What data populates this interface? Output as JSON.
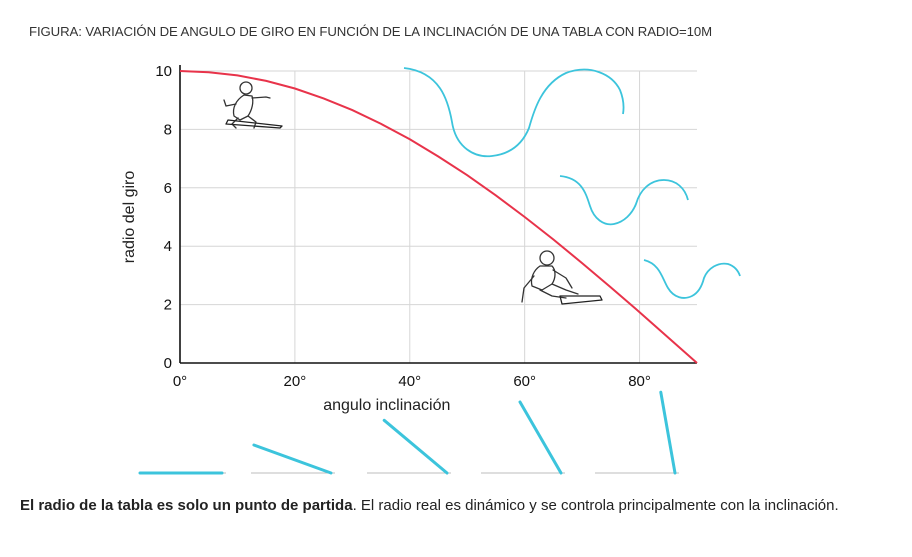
{
  "figure_title": "FIGURA: VARIACIÓN DE ANGULO DE GIRO EN FUNCIÓN DE LA INCLINACIÓN DE UNA TABLA CON RADIO=10M",
  "colors": {
    "curve": "#e8334a",
    "turn_paths": "#3cc4dc",
    "grid": "#d6d6d6",
    "axis": "#111111"
  },
  "illustrations": [
    "snowboarder-upright",
    "snowboarder-leaning",
    "turn-path-large",
    "turn-path-medium",
    "turn-path-small",
    "board-tilt-indicators"
  ],
  "chart_data": {
    "type": "line",
    "title": "",
    "xlabel": "angulo inclinación",
    "ylabel": "radio del giro",
    "xlim": [
      0,
      90
    ],
    "ylim": [
      0,
      10
    ],
    "x_ticks": [
      "0°",
      "20°",
      "40°",
      "60°",
      "80°"
    ],
    "x_tick_values": [
      0,
      20,
      40,
      60,
      80
    ],
    "y_ticks": [
      "0",
      "2",
      "4",
      "6",
      "8",
      "10"
    ],
    "y_tick_values": [
      0,
      2,
      4,
      6,
      8,
      10
    ],
    "grid": true,
    "series": [
      {
        "x": [
          0,
          5,
          10,
          15,
          20,
          25,
          30,
          35,
          40,
          45,
          50,
          55,
          60,
          65,
          70,
          75,
          80,
          85,
          90
        ],
        "y": [
          10,
          9.96,
          9.85,
          9.66,
          9.4,
          9.06,
          8.66,
          8.19,
          7.66,
          7.07,
          6.43,
          5.74,
          5.0,
          4.23,
          3.42,
          2.59,
          1.74,
          0.87,
          0
        ]
      }
    ],
    "board_tilt_angles_deg": [
      0,
      20,
      40,
      60,
      80
    ]
  },
  "caption": {
    "bold": "El radio de la tabla es solo un punto de partida",
    "rest": ". El radio real es dinámico y se controla principalmente con la inclinación."
  }
}
